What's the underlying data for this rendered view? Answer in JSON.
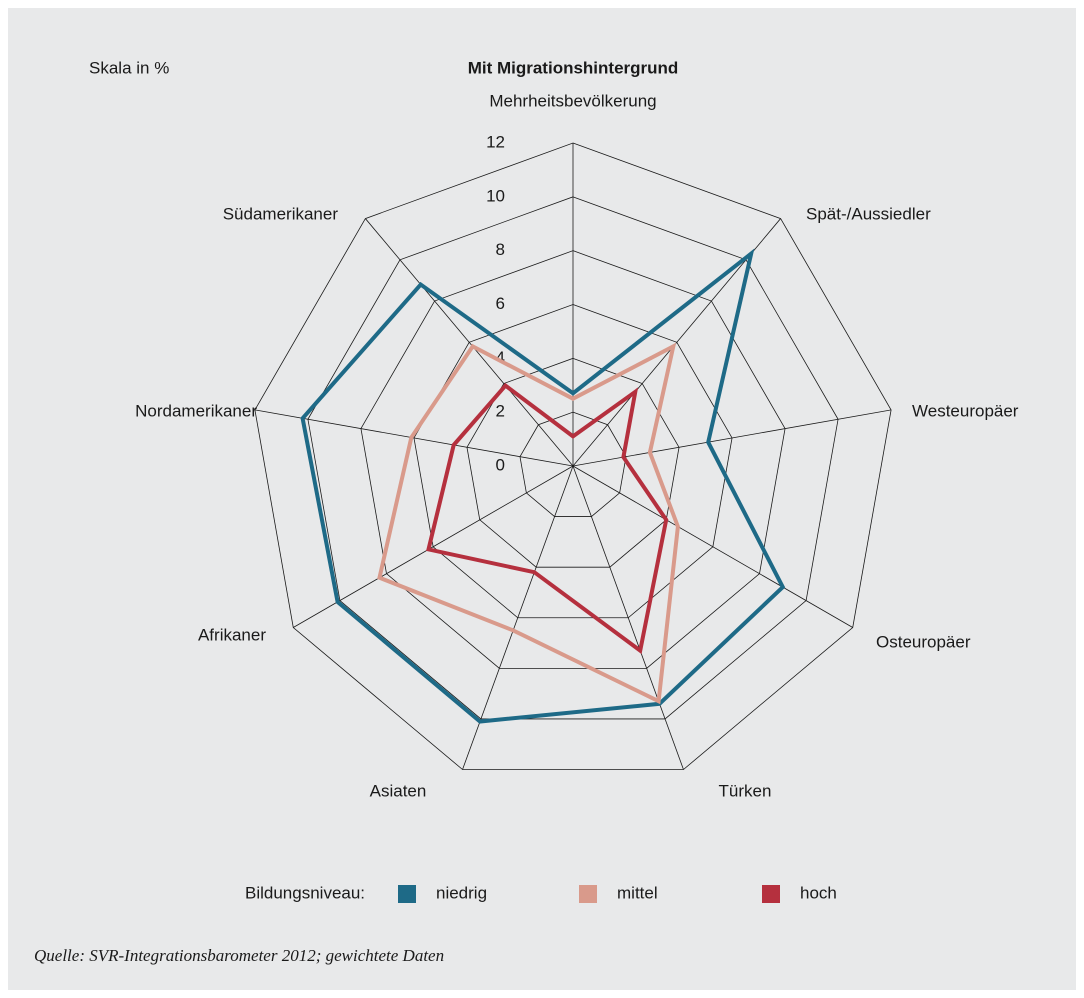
{
  "chart_data": {
    "type": "radar",
    "title": "Mit Migrationshintergrund",
    "scale_note": "Skala in %",
    "legend_title": "Bildungsniveau:",
    "source": "Quelle: SVR-Integrationsbarometer 2012; gewichtete Daten",
    "categories": [
      "Mehrheitsbevölkerung",
      "Spät-/Aussiedler",
      "Westeuropäer",
      "Osteuropäer",
      "Türken",
      "Asiaten",
      "Afrikaner",
      "Nordamerikaner",
      "Südamerikaner"
    ],
    "rlim": [
      0,
      12
    ],
    "rticks": [
      0,
      2,
      4,
      6,
      8,
      10,
      12
    ],
    "grid": true,
    "legend": "bottom",
    "series": [
      {
        "name": "niedrig",
        "color": "#1e6a87",
        "values": [
          2.7,
          10.3,
          5.1,
          9.0,
          9.4,
          10.1,
          10.1,
          10.2,
          8.8
        ]
      },
      {
        "name": "mittel",
        "color": "#d99a8b",
        "values": [
          2.5,
          5.8,
          2.9,
          4.5,
          9.3,
          6.5,
          8.3,
          6.1,
          5.8
        ]
      },
      {
        "name": "hoch",
        "color": "#b5303e",
        "values": [
          1.1,
          3.6,
          1.9,
          4.0,
          7.3,
          4.2,
          6.2,
          4.5,
          3.9
        ]
      }
    ]
  }
}
